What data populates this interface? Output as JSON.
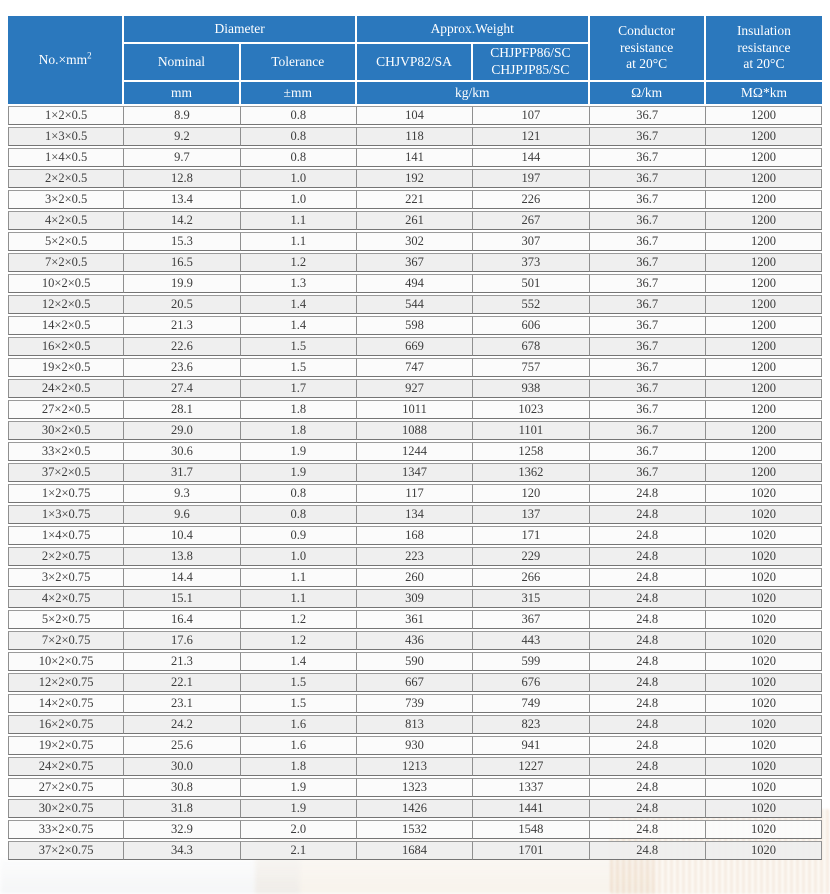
{
  "colors": {
    "header_blue": "#2B78BD",
    "header_text": "#ffffff",
    "row_light": "#fbfbfb",
    "row_dark": "#eeeeee",
    "grid_line": "#8f8f8f",
    "body_text": "#3c3c3c"
  },
  "header": {
    "no_label": "No.×mm",
    "no_sup": "2",
    "diameter": "Diameter",
    "weight": "Approx.Weight",
    "nominal": "Nominal",
    "tolerance": "Tolerance",
    "weight_col1": "CHJVP82/SA",
    "weight_col2_line1": "CHJPFP86/SC",
    "weight_col2_line2": "CHJPJP85/SC",
    "conductor_line1": "Conductor",
    "conductor_line2": "resistance",
    "conductor_line3": "at 20°C",
    "insulation_line1": "Insulation",
    "insulation_line2": "resistance",
    "insulation_line3": "at 20°C",
    "units": {
      "mm": "mm",
      "tolerance": "±mm",
      "weight": "kg/km",
      "conductor": "Ω/km",
      "insulation": "MΩ*km"
    }
  },
  "table": {
    "rows": [
      [
        "1×2×0.5",
        "8.9",
        "0.8",
        "104",
        "107",
        "36.7",
        "1200"
      ],
      [
        "1×3×0.5",
        "9.2",
        "0.8",
        "118",
        "121",
        "36.7",
        "1200"
      ],
      [
        "1×4×0.5",
        "9.7",
        "0.8",
        "141",
        "144",
        "36.7",
        "1200"
      ],
      [
        "2×2×0.5",
        "12.8",
        "1.0",
        "192",
        "197",
        "36.7",
        "1200"
      ],
      [
        "3×2×0.5",
        "13.4",
        "1.0",
        "221",
        "226",
        "36.7",
        "1200"
      ],
      [
        "4×2×0.5",
        "14.2",
        "1.1",
        "261",
        "267",
        "36.7",
        "1200"
      ],
      [
        "5×2×0.5",
        "15.3",
        "1.1",
        "302",
        "307",
        "36.7",
        "1200"
      ],
      [
        "7×2×0.5",
        "16.5",
        "1.2",
        "367",
        "373",
        "36.7",
        "1200"
      ],
      [
        "10×2×0.5",
        "19.9",
        "1.3",
        "494",
        "501",
        "36.7",
        "1200"
      ],
      [
        "12×2×0.5",
        "20.5",
        "1.4",
        "544",
        "552",
        "36.7",
        "1200"
      ],
      [
        "14×2×0.5",
        "21.3",
        "1.4",
        "598",
        "606",
        "36.7",
        "1200"
      ],
      [
        "16×2×0.5",
        "22.6",
        "1.5",
        "669",
        "678",
        "36.7",
        "1200"
      ],
      [
        "19×2×0.5",
        "23.6",
        "1.5",
        "747",
        "757",
        "36.7",
        "1200"
      ],
      [
        "24×2×0.5",
        "27.4",
        "1.7",
        "927",
        "938",
        "36.7",
        "1200"
      ],
      [
        "27×2×0.5",
        "28.1",
        "1.8",
        "1011",
        "1023",
        "36.7",
        "1200"
      ],
      [
        "30×2×0.5",
        "29.0",
        "1.8",
        "1088",
        "1101",
        "36.7",
        "1200"
      ],
      [
        "33×2×0.5",
        "30.6",
        "1.9",
        "1244",
        "1258",
        "36.7",
        "1200"
      ],
      [
        "37×2×0.5",
        "31.7",
        "1.9",
        "1347",
        "1362",
        "36.7",
        "1200"
      ],
      [
        "1×2×0.75",
        "9.3",
        "0.8",
        "117",
        "120",
        "24.8",
        "1020"
      ],
      [
        "1×3×0.75",
        "9.6",
        "0.8",
        "134",
        "137",
        "24.8",
        "1020"
      ],
      [
        "1×4×0.75",
        "10.4",
        "0.9",
        "168",
        "171",
        "24.8",
        "1020"
      ],
      [
        "2×2×0.75",
        "13.8",
        "1.0",
        "223",
        "229",
        "24.8",
        "1020"
      ],
      [
        "3×2×0.75",
        "14.4",
        "1.1",
        "260",
        "266",
        "24.8",
        "1020"
      ],
      [
        "4×2×0.75",
        "15.1",
        "1.1",
        "309",
        "315",
        "24.8",
        "1020"
      ],
      [
        "5×2×0.75",
        "16.4",
        "1.2",
        "361",
        "367",
        "24.8",
        "1020"
      ],
      [
        "7×2×0.75",
        "17.6",
        "1.2",
        "436",
        "443",
        "24.8",
        "1020"
      ],
      [
        "10×2×0.75",
        "21.3",
        "1.4",
        "590",
        "599",
        "24.8",
        "1020"
      ],
      [
        "12×2×0.75",
        "22.1",
        "1.5",
        "667",
        "676",
        "24.8",
        "1020"
      ],
      [
        "14×2×0.75",
        "23.1",
        "1.5",
        "739",
        "749",
        "24.8",
        "1020"
      ],
      [
        "16×2×0.75",
        "24.2",
        "1.6",
        "813",
        "823",
        "24.8",
        "1020"
      ],
      [
        "19×2×0.75",
        "25.6",
        "1.6",
        "930",
        "941",
        "24.8",
        "1020"
      ],
      [
        "24×2×0.75",
        "30.0",
        "1.8",
        "1213",
        "1227",
        "24.8",
        "1020"
      ],
      [
        "27×2×0.75",
        "30.8",
        "1.9",
        "1323",
        "1337",
        "24.8",
        "1020"
      ],
      [
        "30×2×0.75",
        "31.8",
        "1.9",
        "1426",
        "1441",
        "24.8",
        "1020"
      ],
      [
        "33×2×0.75",
        "32.9",
        "2.0",
        "1532",
        "1548",
        "24.8",
        "1020"
      ],
      [
        "37×2×0.75",
        "34.3",
        "2.1",
        "1684",
        "1701",
        "24.8",
        "1020"
      ]
    ]
  }
}
